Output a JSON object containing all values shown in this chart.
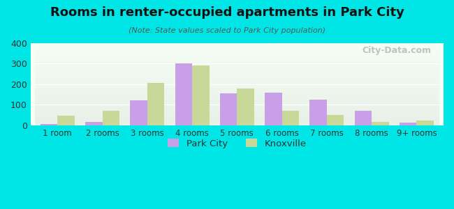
{
  "title": "Rooms in renter-occupied apartments in Park City",
  "subtitle": "(Note: State values scaled to Park City population)",
  "categories": [
    "1 room",
    "2 rooms",
    "3 rooms",
    "4 rooms",
    "5 rooms",
    "6 rooms",
    "7 rooms",
    "8 rooms",
    "9+ rooms"
  ],
  "park_city": [
    5,
    15,
    120,
    300,
    155,
    160,
    125,
    72,
    12
  ],
  "knoxville": [
    48,
    72,
    207,
    292,
    178,
    72,
    50,
    18,
    22
  ],
  "park_city_color": "#c9a0e8",
  "knoxville_color": "#c8d898",
  "background_outer": "#00e5e5",
  "background_plot_top": "#e8f0e8",
  "background_plot_bottom": "#f5fef5",
  "ylim": [
    0,
    400
  ],
  "yticks": [
    0,
    100,
    200,
    300,
    400
  ],
  "bar_width": 0.38,
  "legend_park_city": "Park City",
  "legend_knoxville": "Knoxville",
  "watermark": "City-Data.com"
}
